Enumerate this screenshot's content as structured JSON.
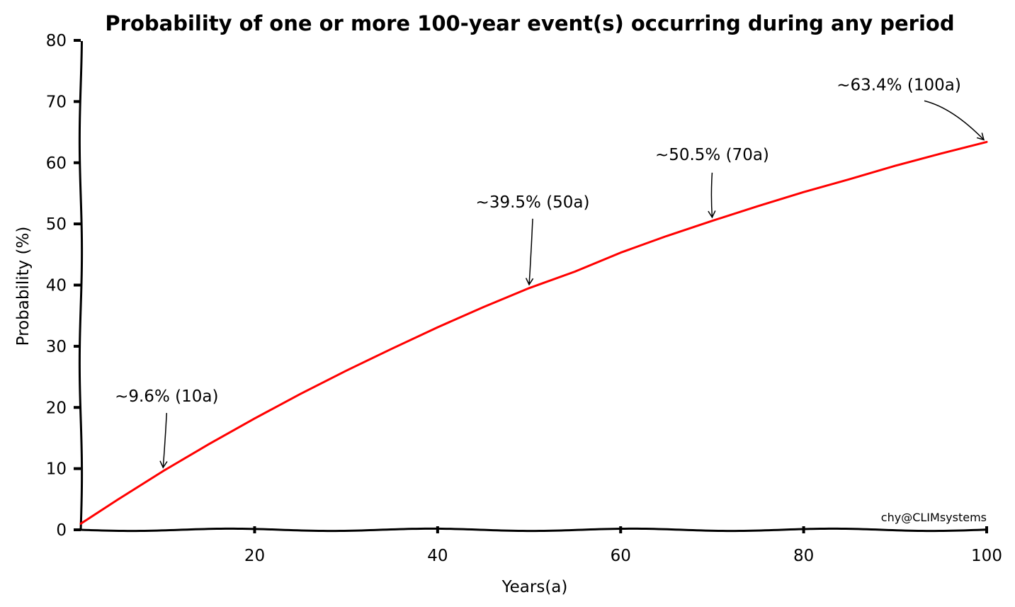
{
  "chart_data": {
    "type": "line",
    "title": "Probability of one or more 100-year event(s) occurring during any period",
    "xlabel": "Years(a)",
    "ylabel": "Probability (%)",
    "xlim": [
      1,
      100
    ],
    "ylim": [
      0,
      80
    ],
    "xticks": [
      20,
      40,
      60,
      80,
      100
    ],
    "yticks": [
      0,
      10,
      20,
      30,
      40,
      50,
      60,
      70,
      80
    ],
    "grid": false,
    "line_color": "#ff0000",
    "series": [
      {
        "x": [
          1,
          5,
          10,
          15,
          20,
          25,
          30,
          35,
          40,
          45,
          50,
          55,
          60,
          65,
          70,
          75,
          80,
          85,
          90,
          95,
          100
        ],
        "values": [
          1.0,
          4.9,
          9.6,
          14.0,
          18.2,
          22.2,
          26.0,
          29.6,
          33.1,
          36.4,
          39.5,
          42.2,
          45.3,
          48.0,
          50.5,
          52.9,
          55.2,
          57.3,
          59.5,
          61.5,
          63.4
        ]
      }
    ],
    "annotations": [
      {
        "text": "~9.6% (10a)",
        "x": 10,
        "y": 9.6
      },
      {
        "text": "~39.5% (50a)",
        "x": 50,
        "y": 39.5
      },
      {
        "text": "~50.5% (70a)",
        "x": 70,
        "y": 50.5
      },
      {
        "text": "~63.4% (100a)",
        "x": 100,
        "y": 63.4
      }
    ],
    "credit": "chy@CLIMsystems"
  }
}
